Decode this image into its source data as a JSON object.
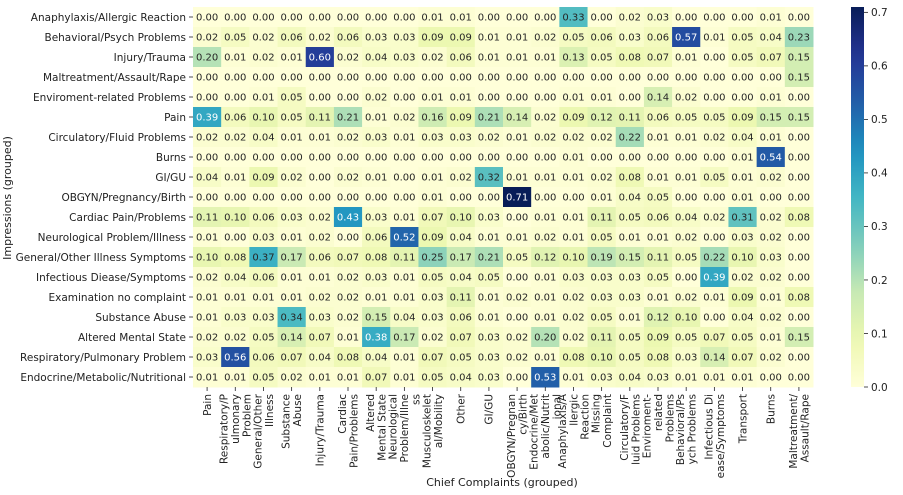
{
  "chart_data": {
    "type": "heatmap",
    "xlabel": "Chief Complaints (grouped)",
    "ylabel": "Impressions (grouped)",
    "x_categories": [
      [
        "Pain"
      ],
      [
        "Respiratory/P",
        "ulmonary",
        "Problem"
      ],
      [
        "General/Other",
        "Illness"
      ],
      [
        "Substance",
        "Abuse"
      ],
      [
        "Injury/Trauma"
      ],
      [
        "Cardiac",
        "Pain/Problems"
      ],
      [
        "Altered",
        "Mental State"
      ],
      [
        "Neurological",
        "Problem/Illne",
        "ss"
      ],
      [
        "Musculoskelet",
        "al/Mobility"
      ],
      [
        "Other"
      ],
      [
        "GI/GU"
      ],
      [
        "OBGYN/Pregnan",
        "cy/Birth"
      ],
      [
        "Endocrine/Met",
        "abolic/Nutrit",
        "ional"
      ],
      [
        "Anaphylaxis/A",
        "llergic",
        "Reaction"
      ],
      [
        "Missing",
        "Complaint"
      ],
      [
        "Circulatory/F",
        "luid Problems"
      ],
      [
        "Enviroment-",
        "related",
        "Problems"
      ],
      [
        "Behavioral/Ps",
        "ych Problems"
      ],
      [
        "Infectious Di",
        "ease/Symptoms"
      ],
      [
        "Transport"
      ],
      [
        "Burns"
      ],
      [
        "Maltreatment/",
        "Assault/Rape"
      ]
    ],
    "y_categories": [
      "Anaphylaxis/Allergic Reaction",
      "Behavioral/Psych Problems",
      "Injury/Trauma",
      "Maltreatment/Assault/Rape",
      "Enviroment-related Problems",
      "Pain",
      "Circulatory/Fluid Problems",
      "Burns",
      "GI/GU",
      "OBGYN/Pregnancy/Birth",
      "Cardiac Pain/Problems",
      "Neurological Problem/Illness",
      "General/Other Illness Symptoms",
      "Infectious Diease/Symptoms",
      "Examination no complaint",
      "Substance Abuse",
      "Altered Mental State",
      "Respiratory/Pulmonary Problem",
      "Endocrine/Metabolic/Nutritional"
    ],
    "values": [
      [
        0.0,
        0.0,
        0.0,
        0.0,
        0.0,
        0.0,
        0.0,
        0.0,
        0.01,
        0.01,
        0.0,
        0.0,
        0.0,
        0.33,
        0.0,
        0.02,
        0.03,
        0.0,
        0.0,
        0.0,
        0.01,
        0.0
      ],
      [
        0.02,
        0.05,
        0.02,
        0.06,
        0.02,
        0.06,
        0.03,
        0.03,
        0.09,
        0.09,
        0.01,
        0.01,
        0.02,
        0.05,
        0.06,
        0.03,
        0.06,
        0.57,
        0.01,
        0.05,
        0.04,
        0.23
      ],
      [
        0.2,
        0.01,
        0.02,
        0.01,
        0.6,
        0.02,
        0.04,
        0.03,
        0.02,
        0.06,
        0.01,
        0.01,
        0.01,
        0.13,
        0.05,
        0.08,
        0.07,
        0.01,
        0.0,
        0.05,
        0.07,
        0.15
      ],
      [
        0.0,
        0.0,
        0.0,
        0.0,
        0.0,
        0.0,
        0.0,
        0.0,
        0.0,
        0.0,
        0.0,
        0.0,
        0.0,
        0.0,
        0.0,
        0.0,
        0.0,
        0.0,
        0.0,
        0.0,
        0.0,
        0.15
      ],
      [
        0.0,
        0.0,
        0.01,
        0.05,
        0.0,
        0.0,
        0.02,
        0.0,
        0.01,
        0.01,
        0.0,
        0.0,
        0.0,
        0.01,
        0.01,
        0.0,
        0.14,
        0.02,
        0.0,
        0.0,
        0.01,
        0.0
      ],
      [
        0.39,
        0.06,
        0.1,
        0.05,
        0.11,
        0.21,
        0.01,
        0.02,
        0.16,
        0.09,
        0.21,
        0.14,
        0.02,
        0.09,
        0.12,
        0.11,
        0.06,
        0.05,
        0.05,
        0.09,
        0.15,
        0.15
      ],
      [
        0.02,
        0.02,
        0.04,
        0.01,
        0.01,
        0.02,
        0.03,
        0.01,
        0.03,
        0.03,
        0.02,
        0.01,
        0.02,
        0.02,
        0.02,
        0.22,
        0.01,
        0.01,
        0.02,
        0.04,
        0.01,
        0.0
      ],
      [
        0.0,
        0.0,
        0.0,
        0.0,
        0.0,
        0.0,
        0.0,
        0.0,
        0.0,
        0.0,
        0.0,
        0.0,
        0.0,
        0.01,
        0.0,
        0.0,
        0.0,
        0.0,
        0.0,
        0.01,
        0.54,
        0.0
      ],
      [
        0.04,
        0.01,
        0.09,
        0.02,
        0.0,
        0.02,
        0.01,
        0.0,
        0.01,
        0.02,
        0.32,
        0.01,
        0.01,
        0.01,
        0.02,
        0.08,
        0.01,
        0.01,
        0.05,
        0.01,
        0.02,
        0.0
      ],
      [
        0.0,
        0.0,
        0.0,
        0.0,
        0.0,
        0.0,
        0.0,
        0.0,
        0.01,
        0.0,
        0.0,
        0.71,
        0.0,
        0.0,
        0.01,
        0.04,
        0.05,
        0.0,
        0.0,
        0.01,
        0.0,
        0.0
      ],
      [
        0.11,
        0.1,
        0.06,
        0.03,
        0.02,
        0.43,
        0.03,
        0.01,
        0.07,
        0.1,
        0.03,
        0.0,
        0.01,
        0.01,
        0.11,
        0.05,
        0.06,
        0.04,
        0.02,
        0.31,
        0.02,
        0.08
      ],
      [
        0.01,
        0.0,
        0.03,
        0.01,
        0.02,
        0.0,
        0.06,
        0.52,
        0.09,
        0.04,
        0.01,
        0.01,
        0.02,
        0.01,
        0.05,
        0.01,
        0.01,
        0.02,
        0.0,
        0.03,
        0.02,
        0.0
      ],
      [
        0.1,
        0.08,
        0.37,
        0.17,
        0.06,
        0.07,
        0.08,
        0.11,
        0.25,
        0.17,
        0.21,
        0.05,
        0.12,
        0.1,
        0.19,
        0.15,
        0.11,
        0.05,
        0.22,
        0.1,
        0.03,
        0.0
      ],
      [
        0.02,
        0.04,
        0.06,
        0.01,
        0.01,
        0.02,
        0.03,
        0.01,
        0.05,
        0.04,
        0.05,
        0.0,
        0.01,
        0.03,
        0.03,
        0.03,
        0.05,
        0.0,
        0.39,
        0.02,
        0.02,
        0.0
      ],
      [
        0.01,
        0.01,
        0.01,
        0.01,
        0.02,
        0.02,
        0.01,
        0.01,
        0.03,
        0.11,
        0.01,
        0.02,
        0.01,
        0.02,
        0.03,
        0.03,
        0.01,
        0.02,
        0.01,
        0.09,
        0.01,
        0.08
      ],
      [
        0.01,
        0.03,
        0.03,
        0.34,
        0.03,
        0.02,
        0.15,
        0.04,
        0.03,
        0.06,
        0.01,
        0.0,
        0.01,
        0.02,
        0.05,
        0.01,
        0.12,
        0.1,
        0.0,
        0.04,
        0.02,
        0.0
      ],
      [
        0.02,
        0.02,
        0.05,
        0.14,
        0.07,
        0.01,
        0.38,
        0.17,
        0.02,
        0.07,
        0.03,
        0.02,
        0.2,
        0.02,
        0.11,
        0.05,
        0.09,
        0.05,
        0.07,
        0.05,
        0.01,
        0.15
      ],
      [
        0.03,
        0.56,
        0.06,
        0.07,
        0.04,
        0.08,
        0.04,
        0.01,
        0.07,
        0.05,
        0.03,
        0.02,
        0.01,
        0.08,
        0.1,
        0.05,
        0.08,
        0.03,
        0.14,
        0.07,
        0.02,
        0.0
      ],
      [
        0.01,
        0.01,
        0.05,
        0.02,
        0.01,
        0.01,
        0.07,
        0.01,
        0.05,
        0.04,
        0.03,
        0.0,
        0.53,
        0.01,
        0.03,
        0.04,
        0.03,
        0.01,
        0.01,
        0.01,
        0.0,
        0.0
      ]
    ],
    "colorbar": {
      "colormap": "YlGnBu",
      "range": [
        0.0,
        0.71
      ],
      "ticks": [
        "0.0",
        "0.1",
        "0.2",
        "0.3",
        "0.4",
        "0.5",
        "0.6",
        "0.7"
      ],
      "tick_values": [
        0.0,
        0.1,
        0.2,
        0.3,
        0.4,
        0.5,
        0.6,
        0.7
      ]
    },
    "value_format": "0.00",
    "grid": false,
    "legend": "colorbar-right"
  }
}
